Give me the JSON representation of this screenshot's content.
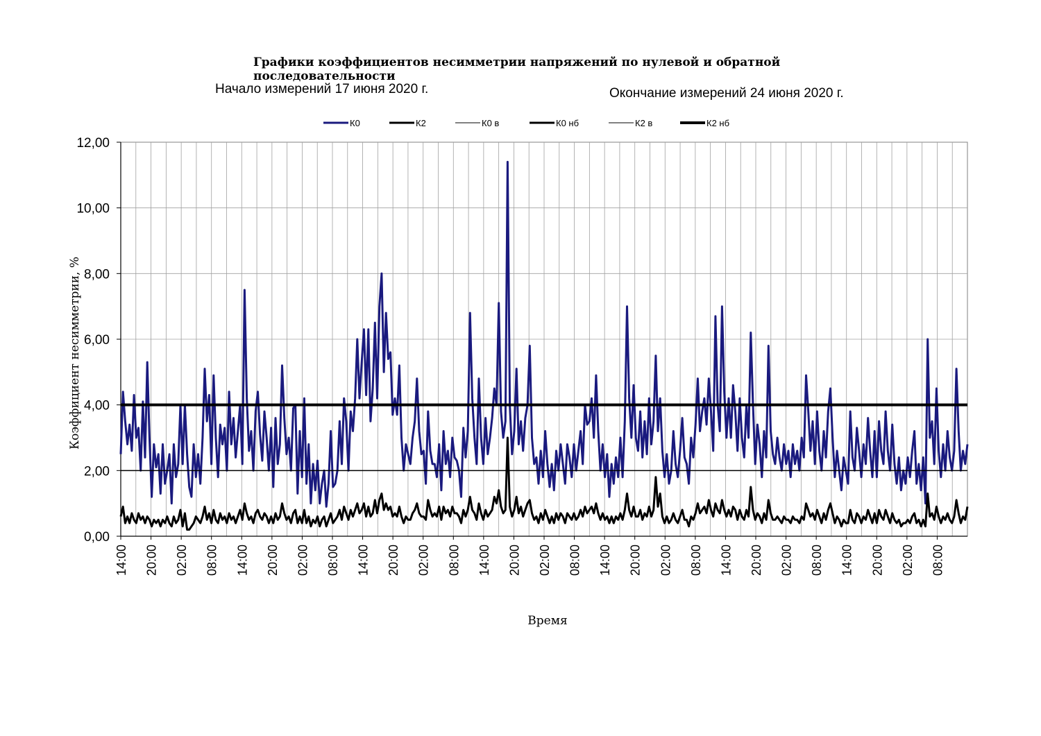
{
  "header": {
    "title": "Графики коэффициентов несимметрии напряжений по нулевой и обратной последовательности",
    "start_text": "Начало измерений  17 июня 2020 г.",
    "end_text": "Окончание измерений   24 июня 2020 г."
  },
  "chart_data": {
    "type": "line",
    "ylabel": "Коэффициент несимметрии, %",
    "xlabel": "Время",
    "ylim": [
      0,
      12
    ],
    "y_ticks": [
      "0,00",
      "2,00",
      "4,00",
      "6,00",
      "8,00",
      "10,00",
      "12,00"
    ],
    "x_ticks": [
      "14:00",
      "20:00",
      "02:00",
      "08:00",
      "14:00",
      "20:00",
      "02:00",
      "08:00",
      "14:00",
      "20:00",
      "02:00",
      "08:00",
      "14:00",
      "20:00",
      "02:00",
      "08:00",
      "14:00",
      "20:00",
      "02:00",
      "08:00",
      "14:00",
      "20:00",
      "02:00",
      "08:00",
      "14:00",
      "20:00",
      "02:00",
      "08:00"
    ],
    "grid": true,
    "legend_position": "top",
    "legend": [
      {
        "name": "К0",
        "color": "#1a1a7e",
        "style": "thick"
      },
      {
        "name": "К2",
        "color": "#000000",
        "style": "thick"
      },
      {
        "name": "К0 в",
        "color": "#000000",
        "style": "thin"
      },
      {
        "name": "К0 нб",
        "color": "#000000",
        "style": "thick"
      },
      {
        "name": "К2 в",
        "color": "#000000",
        "style": "thin"
      },
      {
        "name": "К2 нб",
        "color": "#000000",
        "style": "thick"
      }
    ],
    "series": [
      {
        "name": "К0",
        "color": "#1a1a7e",
        "values": [
          2.5,
          4.4,
          3.5,
          2.8,
          3.4,
          2.6,
          4.3,
          3.0,
          3.3,
          2.0,
          4.1,
          2.4,
          5.3,
          3.0,
          1.2,
          2.8,
          2.1,
          2.5,
          1.3,
          2.8,
          1.6,
          2.0,
          2.5,
          1.0,
          2.8,
          1.8,
          2.2,
          4.0,
          2.2,
          4.0,
          2.5,
          1.5,
          1.2,
          2.8,
          1.8,
          2.5,
          1.6,
          3.0,
          5.1,
          3.5,
          4.3,
          2.2,
          4.9,
          3.0,
          1.8,
          3.4,
          2.8,
          3.3,
          2.0,
          4.4,
          2.8,
          3.6,
          2.4,
          3.2,
          4.0,
          2.2,
          7.5,
          4.2,
          2.6,
          3.2,
          2.0,
          3.8,
          4.4,
          3.1,
          2.3,
          3.8,
          3.0,
          2.0,
          3.3,
          1.5,
          3.6,
          2.2,
          2.8,
          5.2,
          3.6,
          2.5,
          3.0,
          2.0,
          3.9,
          4.0,
          1.3,
          3.2,
          1.8,
          4.2,
          1.6,
          2.8,
          1.0,
          2.2,
          1.4,
          2.3,
          1.0,
          1.6,
          2.0,
          0.9,
          1.6,
          3.2,
          1.5,
          1.6,
          2.0,
          3.5,
          2.2,
          4.2,
          3.5,
          2.0,
          3.8,
          3.2,
          4.2,
          6.0,
          4.2,
          5.3,
          6.3,
          4.3,
          6.3,
          3.5,
          4.5,
          6.5,
          4.2,
          7.0,
          8.0,
          5.0,
          6.8,
          5.4,
          5.6,
          3.7,
          4.2,
          3.7,
          5.2,
          3.0,
          2.0,
          2.8,
          2.5,
          2.2,
          3.0,
          3.5,
          4.8,
          3.2,
          2.5,
          2.6,
          1.6,
          3.8,
          2.6,
          2.2,
          2.2,
          1.8,
          2.8,
          1.4,
          3.2,
          2.2,
          2.6,
          1.8,
          3.0,
          2.4,
          2.3,
          2.0,
          1.2,
          3.3,
          2.4,
          3.2,
          6.8,
          4.2,
          3.0,
          2.2,
          4.8,
          3.0,
          2.2,
          3.6,
          2.5,
          3.0,
          3.6,
          4.5,
          4.0,
          7.1,
          3.8,
          3.0,
          3.5,
          11.4,
          4.0,
          2.5,
          3.2,
          5.1,
          2.8,
          3.5,
          2.6,
          3.6,
          4.0,
          5.8,
          3.0,
          2.2,
          2.4,
          1.6,
          2.6,
          1.8,
          3.2,
          2.2,
          1.5,
          2.2,
          1.4,
          2.6,
          2.0,
          2.8,
          2.2,
          1.6,
          2.8,
          2.4,
          1.8,
          2.8,
          2.0,
          2.6,
          3.2,
          2.2,
          4.0,
          3.4,
          3.5,
          4.2,
          3.0,
          4.9,
          3.2,
          2.0,
          2.8,
          1.8,
          2.5,
          1.2,
          2.2,
          1.6,
          2.4,
          1.8,
          3.0,
          1.8,
          3.5,
          7.0,
          4.2,
          3.0,
          4.6,
          3.0,
          2.6,
          3.8,
          2.4,
          3.5,
          2.5,
          4.2,
          2.8,
          3.5,
          5.5,
          3.2,
          4.2,
          2.6,
          1.8,
          2.5,
          1.6,
          2.0,
          3.2,
          2.2,
          1.8,
          2.6,
          3.6,
          2.4,
          2.2,
          1.6,
          3.0,
          2.4,
          3.4,
          4.8,
          3.2,
          3.8,
          4.2,
          3.4,
          4.8,
          3.8,
          2.6,
          6.7,
          4.0,
          3.2,
          7.0,
          4.4,
          3.0,
          4.2,
          3.0,
          4.6,
          3.8,
          2.6,
          4.2,
          3.0,
          2.4,
          4.0,
          3.0,
          6.2,
          4.0,
          2.2,
          3.4,
          2.8,
          1.8,
          3.2,
          2.4,
          5.8,
          3.2,
          2.5,
          2.2,
          3.0,
          2.4,
          2.0,
          2.8,
          2.2,
          2.6,
          1.8,
          2.8,
          2.2,
          2.6,
          2.0,
          3.0,
          2.4,
          4.9,
          3.8,
          2.6,
          3.5,
          2.2,
          3.8,
          2.6,
          2.0,
          3.2,
          2.4,
          3.8,
          4.5,
          3.0,
          1.8,
          2.6,
          2.0,
          1.4,
          2.4,
          2.0,
          1.6,
          3.8,
          2.4,
          2.0,
          3.3,
          2.6,
          1.8,
          2.8,
          2.2,
          3.6,
          2.6,
          1.8,
          3.2,
          1.8,
          3.5,
          2.6,
          2.2,
          3.8,
          2.6,
          2.0,
          3.4,
          2.2,
          1.6,
          2.4,
          1.4,
          2.0,
          1.6,
          2.4,
          1.8,
          2.6,
          3.2,
          1.6,
          2.2,
          1.4,
          2.4,
          1.0,
          6.0,
          3.0,
          3.5,
          2.2,
          4.5,
          2.6,
          1.8,
          2.8,
          2.0,
          3.2,
          2.4,
          2.0,
          2.6,
          5.1,
          3.2,
          2.0,
          2.6,
          2.2,
          2.8
        ]
      },
      {
        "name": "К2",
        "color": "#000000",
        "values": [
          0.6,
          0.9,
          0.4,
          0.6,
          0.4,
          0.7,
          0.5,
          0.4,
          0.7,
          0.5,
          0.6,
          0.4,
          0.6,
          0.5,
          0.3,
          0.5,
          0.4,
          0.5,
          0.3,
          0.5,
          0.4,
          0.6,
          0.4,
          0.3,
          0.6,
          0.4,
          0.5,
          0.8,
          0.3,
          0.7,
          0.2,
          0.2,
          0.3,
          0.4,
          0.6,
          0.5,
          0.4,
          0.6,
          0.9,
          0.5,
          0.7,
          0.4,
          0.8,
          0.5,
          0.4,
          0.7,
          0.5,
          0.6,
          0.4,
          0.7,
          0.5,
          0.6,
          0.4,
          0.6,
          0.8,
          0.5,
          1.0,
          0.7,
          0.5,
          0.6,
          0.4,
          0.7,
          0.8,
          0.6,
          0.5,
          0.7,
          0.6,
          0.4,
          0.6,
          0.4,
          0.7,
          0.5,
          0.6,
          1.0,
          0.7,
          0.5,
          0.6,
          0.4,
          0.7,
          0.8,
          0.4,
          0.6,
          0.4,
          0.8,
          0.4,
          0.6,
          0.3,
          0.5,
          0.4,
          0.6,
          0.3,
          0.5,
          0.6,
          0.3,
          0.5,
          0.7,
          0.4,
          0.5,
          0.6,
          0.8,
          0.5,
          0.9,
          0.7,
          0.5,
          0.8,
          0.6,
          0.8,
          1.0,
          0.7,
          0.8,
          1.0,
          0.6,
          0.9,
          0.6,
          0.7,
          1.1,
          0.7,
          1.1,
          1.3,
          0.8,
          1.0,
          0.8,
          0.9,
          0.6,
          0.7,
          0.6,
          0.9,
          0.6,
          0.4,
          0.6,
          0.5,
          0.5,
          0.7,
          0.8,
          1.0,
          0.7,
          0.6,
          0.6,
          0.5,
          1.1,
          0.8,
          0.6,
          0.7,
          0.6,
          0.9,
          0.5,
          0.9,
          0.7,
          0.8,
          0.6,
          0.9,
          0.7,
          0.7,
          0.6,
          0.4,
          0.8,
          0.6,
          0.8,
          1.2,
          0.8,
          0.7,
          0.5,
          1.0,
          0.7,
          0.5,
          0.8,
          0.6,
          0.7,
          0.8,
          1.2,
          1.0,
          1.4,
          0.9,
          0.7,
          0.8,
          3.0,
          0.9,
          0.6,
          0.8,
          1.2,
          0.7,
          0.9,
          0.6,
          0.8,
          1.0,
          1.1,
          0.7,
          0.5,
          0.6,
          0.4,
          0.7,
          0.5,
          0.8,
          0.6,
          0.4,
          0.6,
          0.4,
          0.7,
          0.5,
          0.7,
          0.6,
          0.4,
          0.7,
          0.6,
          0.5,
          0.7,
          0.5,
          0.6,
          0.8,
          0.6,
          0.9,
          0.7,
          0.8,
          0.9,
          0.7,
          1.0,
          0.7,
          0.5,
          0.7,
          0.5,
          0.6,
          0.4,
          0.6,
          0.4,
          0.6,
          0.5,
          0.7,
          0.5,
          0.8,
          1.3,
          0.8,
          0.6,
          0.9,
          0.6,
          0.6,
          0.8,
          0.5,
          0.7,
          0.6,
          0.9,
          0.6,
          0.8,
          1.8,
          0.9,
          1.3,
          0.6,
          0.4,
          0.6,
          0.4,
          0.5,
          0.7,
          0.5,
          0.4,
          0.6,
          0.8,
          0.5,
          0.5,
          0.3,
          0.6,
          0.5,
          0.7,
          1.0,
          0.7,
          0.8,
          0.9,
          0.7,
          1.1,
          0.8,
          0.6,
          1.0,
          0.8,
          0.7,
          1.1,
          0.8,
          0.6,
          0.8,
          0.6,
          0.9,
          0.8,
          0.5,
          0.8,
          0.6,
          0.5,
          0.8,
          0.6,
          1.5,
          0.8,
          0.5,
          0.7,
          0.6,
          0.4,
          0.7,
          0.5,
          1.1,
          0.7,
          0.5,
          0.5,
          0.6,
          0.5,
          0.4,
          0.6,
          0.5,
          0.5,
          0.4,
          0.6,
          0.5,
          0.5,
          0.4,
          0.6,
          0.5,
          1.0,
          0.8,
          0.6,
          0.7,
          0.5,
          0.8,
          0.6,
          0.4,
          0.7,
          0.5,
          0.8,
          1.0,
          0.7,
          0.4,
          0.6,
          0.5,
          0.3,
          0.5,
          0.4,
          0.4,
          0.8,
          0.5,
          0.4,
          0.7,
          0.6,
          0.4,
          0.6,
          0.5,
          0.8,
          0.6,
          0.4,
          0.7,
          0.4,
          0.8,
          0.6,
          0.5,
          0.8,
          0.6,
          0.4,
          0.7,
          0.5,
          0.4,
          0.5,
          0.3,
          0.4,
          0.4,
          0.5,
          0.4,
          0.6,
          0.7,
          0.4,
          0.5,
          0.3,
          0.5,
          0.3,
          1.3,
          0.6,
          0.7,
          0.5,
          0.9,
          0.6,
          0.4,
          0.6,
          0.5,
          0.7,
          0.5,
          0.4,
          0.6,
          1.1,
          0.7,
          0.4,
          0.6,
          0.5,
          0.9
        ]
      },
      {
        "name": "К0 в",
        "color": "#000000",
        "values": [
          4.0,
          4.0
        ],
        "constant": 4.0
      },
      {
        "name": "К0 нб",
        "color": "#000000",
        "values": [
          2.0,
          2.0
        ],
        "constant": 2.0
      },
      {
        "name": "К2 в",
        "color": "#000000",
        "values": [
          4.0,
          4.0
        ],
        "constant": 4.0
      },
      {
        "name": "К2 нб",
        "color": "#000000",
        "values": [
          4.0,
          4.0
        ],
        "constant": 4.0
      }
    ]
  }
}
